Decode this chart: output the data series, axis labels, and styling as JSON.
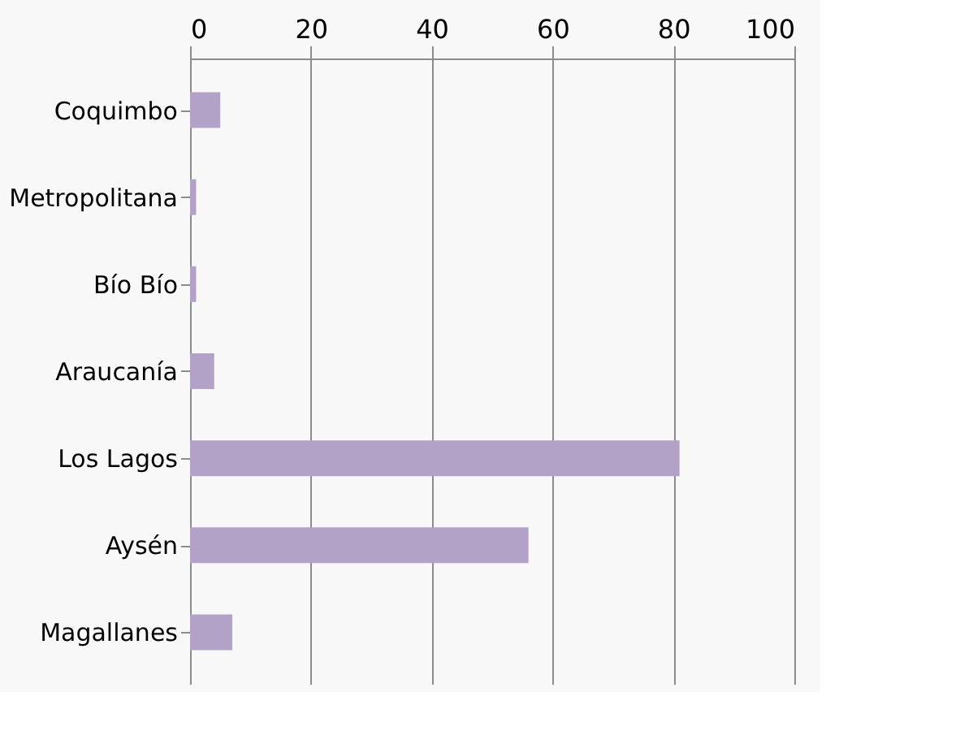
{
  "chart_data": {
    "type": "bar",
    "orientation": "horizontal",
    "categories": [
      "Coquimbo",
      "Metropolitana",
      "Bío Bío",
      "Araucanía",
      "Los Lagos",
      "Aysén",
      "Magallanes"
    ],
    "values": [
      5,
      1,
      1,
      4,
      81,
      56,
      7
    ],
    "color": "#b3a2c7",
    "xlim": [
      0,
      100
    ],
    "xticks": [
      0,
      20,
      40,
      60,
      80,
      100
    ],
    "grid": "x"
  }
}
